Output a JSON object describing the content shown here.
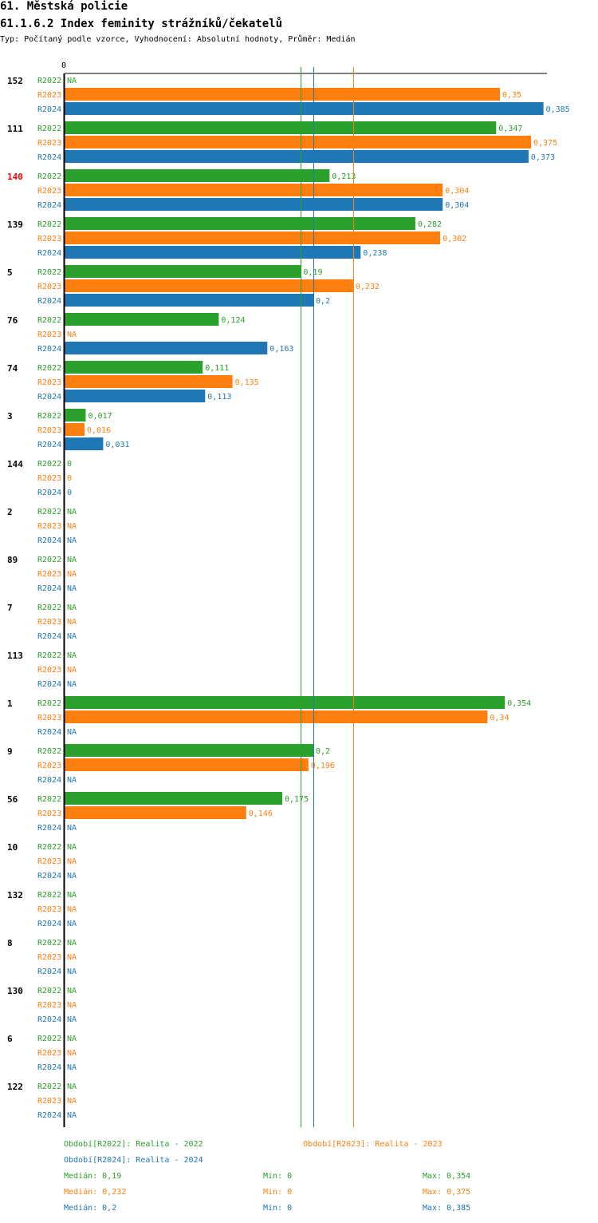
{
  "header": {
    "title": "61. Městská policie",
    "subtitle": "61.1.6.2 Index feminity strážníků/čekatelů",
    "info": "Typ: Počítaný podle vzorce, Vyhodnocení: Absolutní hodnoty, Průměr: Medián"
  },
  "colors": {
    "R2022": "#2ca02c",
    "R2023": "#ff7f0e",
    "R2024": "#1f77b4",
    "highlight": "#ff0000",
    "axis": "#000000"
  },
  "chart_data": {
    "type": "bar",
    "orientation": "horizontal",
    "axis_zero_label": "0",
    "xlim": [
      0,
      0.385
    ],
    "periods": [
      "R2022",
      "R2023",
      "R2024"
    ],
    "highlight_category": "140",
    "categories": [
      "152",
      "111",
      "140",
      "139",
      "5",
      "76",
      "74",
      "3",
      "144",
      "2",
      "89",
      "7",
      "113",
      "1",
      "9",
      "56",
      "10",
      "132",
      "8",
      "130",
      "6",
      "122"
    ],
    "series": [
      {
        "name": "R2022",
        "values": [
          null,
          0.347,
          0.213,
          0.282,
          0.19,
          0.124,
          0.111,
          0.017,
          0,
          null,
          null,
          null,
          null,
          0.354,
          0.2,
          0.175,
          null,
          null,
          null,
          null,
          null,
          null
        ]
      },
      {
        "name": "R2023",
        "values": [
          0.35,
          0.375,
          0.304,
          0.302,
          0.232,
          null,
          0.135,
          0.016,
          0,
          null,
          null,
          null,
          null,
          0.34,
          0.196,
          0.146,
          null,
          null,
          null,
          null,
          null,
          null
        ]
      },
      {
        "name": "R2024",
        "values": [
          0.385,
          0.373,
          0.304,
          0.238,
          0.2,
          0.163,
          0.113,
          0.031,
          0,
          null,
          null,
          null,
          null,
          null,
          null,
          null,
          null,
          null,
          null,
          null,
          null,
          null
        ]
      }
    ],
    "value_labels": {
      "R2022": [
        "NA",
        "0,347",
        "0,213",
        "0,282",
        "0,19",
        "0,124",
        "0,111",
        "0,017",
        "0",
        "NA",
        "NA",
        "NA",
        "NA",
        "0,354",
        "0,2",
        "0,175",
        "NA",
        "NA",
        "NA",
        "NA",
        "NA",
        "NA"
      ],
      "R2023": [
        "0,35",
        "0,375",
        "0,304",
        "0,302",
        "0,232",
        "NA",
        "0,135",
        "0,016",
        "0",
        "NA",
        "NA",
        "NA",
        "NA",
        "0,34",
        "0,196",
        "0,146",
        "NA",
        "NA",
        "NA",
        "NA",
        "NA",
        "NA"
      ],
      "R2024": [
        "0,385",
        "0,373",
        "0,304",
        "0,238",
        "0,2",
        "0,163",
        "0,113",
        "0,031",
        "0",
        "NA",
        "NA",
        "NA",
        "NA",
        "NA",
        "NA",
        "NA",
        "NA",
        "NA",
        "NA",
        "NA",
        "NA",
        "NA"
      ]
    },
    "median_lines": [
      {
        "series": "R2022",
        "value": 0.19
      },
      {
        "series": "R2024",
        "value": 0.2
      },
      {
        "series": "R2023",
        "value": 0.232
      }
    ]
  },
  "legend": {
    "periods": [
      {
        "series": "R2022",
        "label": "Období[R2022]: Realita - 2022"
      },
      {
        "series": "R2023",
        "label": "Období[R2023]: Realita - 2023"
      },
      {
        "series": "R2024",
        "label": "Období[R2024]: Realita - 2024"
      }
    ],
    "stats": [
      {
        "series": "R2022",
        "median": "Medián: 0,19",
        "min": "Min: 0",
        "max": "Max: 0,354"
      },
      {
        "series": "R2023",
        "median": "Medián: 0,232",
        "min": "Min: 0",
        "max": "Max: 0,375"
      },
      {
        "series": "R2024",
        "median": "Medián: 0,2",
        "min": "Min: 0",
        "max": "Max: 0,385"
      }
    ]
  }
}
